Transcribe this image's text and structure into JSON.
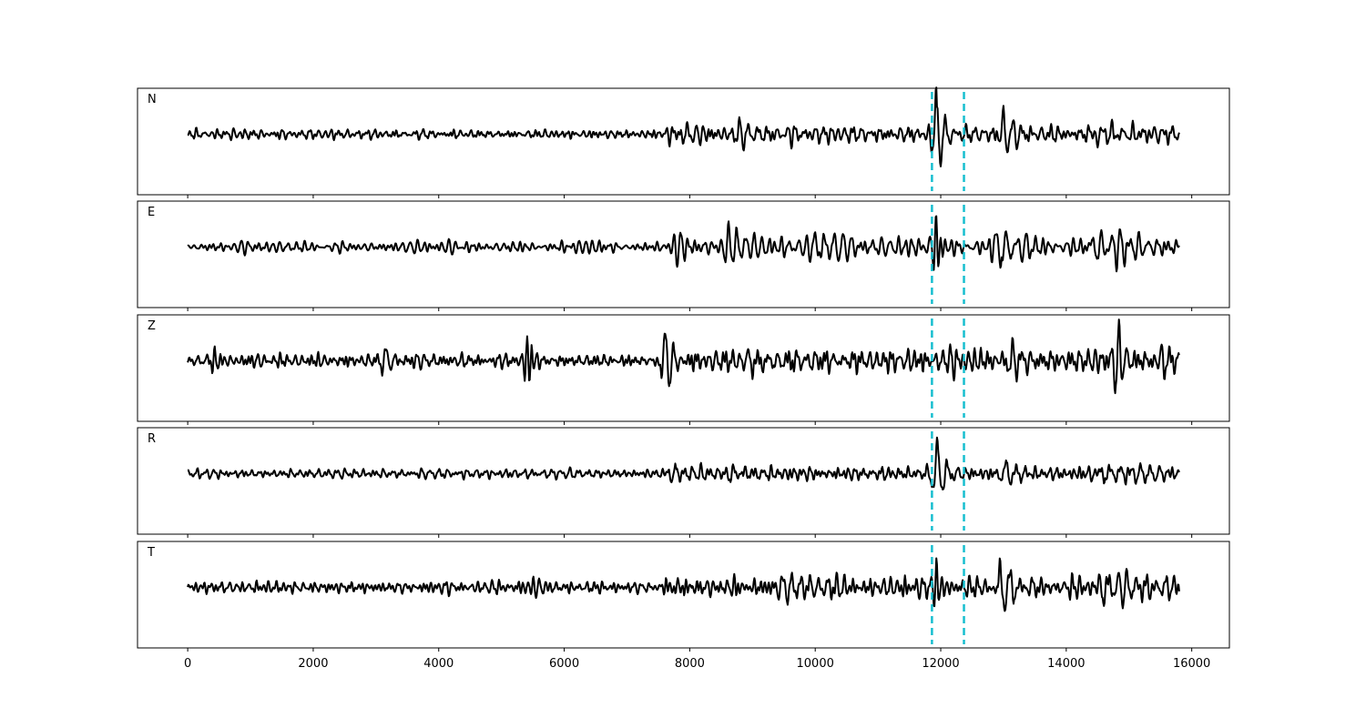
{
  "chart_data": {
    "type": "line",
    "xlim": [
      -800,
      16600
    ],
    "x_ticks": [
      0,
      2000,
      4000,
      6000,
      8000,
      10000,
      12000,
      14000,
      16000
    ],
    "x_tick_labels": [
      "0",
      "2000",
      "4000",
      "6000",
      "8000",
      "10000",
      "12000",
      "14000",
      "16000"
    ],
    "xlabel": "",
    "ylabel": "",
    "grid": false,
    "sample_range": [
      0,
      15800
    ],
    "pick_lines": {
      "color": "#17becf",
      "style": "dashed",
      "x": [
        11860,
        12370
      ]
    },
    "panels": [
      {
        "label": "N",
        "noise_amp": 0.1,
        "events": [
          {
            "x": 7700,
            "amp": 0.34,
            "decay": 120,
            "period": 90
          },
          {
            "x": 7950,
            "amp": 0.28,
            "decay": 200,
            "period": 140
          },
          {
            "x": 8800,
            "amp": 0.2,
            "decay": 600,
            "period": 150
          },
          {
            "x": 11960,
            "amp": 0.9,
            "decay": 120,
            "period": 150
          },
          {
            "x": 13050,
            "amp": 0.55,
            "decay": 150,
            "period": 150
          },
          {
            "x": 14500,
            "amp": 0.25,
            "decay": 900,
            "period": 160
          }
        ]
      },
      {
        "label": "E",
        "noise_amp": 0.12,
        "events": [
          {
            "x": 7820,
            "amp": 0.45,
            "decay": 140,
            "period": 120
          },
          {
            "x": 8600,
            "amp": 0.4,
            "decay": 800,
            "period": 140
          },
          {
            "x": 10000,
            "amp": 0.3,
            "decay": 800,
            "period": 150
          },
          {
            "x": 11940,
            "amp": 0.8,
            "decay": 90,
            "period": 80
          },
          {
            "x": 12950,
            "amp": 0.45,
            "decay": 500,
            "period": 160
          },
          {
            "x": 14500,
            "amp": 0.4,
            "decay": 900,
            "period": 150
          }
        ]
      },
      {
        "label": "Z",
        "noise_amp": 0.14,
        "events": [
          {
            "x": 420,
            "amp": 0.38,
            "decay": 60,
            "period": 80
          },
          {
            "x": 3150,
            "amp": 0.38,
            "decay": 150,
            "period": 150
          },
          {
            "x": 5410,
            "amp": 0.65,
            "decay": 110,
            "period": 80
          },
          {
            "x": 7640,
            "amp": 0.72,
            "decay": 130,
            "period": 150
          },
          {
            "x": 9000,
            "amp": 0.35,
            "decay": 900,
            "period": 150
          },
          {
            "x": 12200,
            "amp": 0.35,
            "decay": 400,
            "period": 100
          },
          {
            "x": 13100,
            "amp": 0.4,
            "decay": 600,
            "period": 150
          },
          {
            "x": 14830,
            "amp": 0.8,
            "decay": 110,
            "period": 120
          },
          {
            "x": 15500,
            "amp": 0.3,
            "decay": 400,
            "period": 150
          }
        ]
      },
      {
        "label": "R",
        "noise_amp": 0.09,
        "events": [
          {
            "x": 7750,
            "amp": 0.3,
            "decay": 180,
            "period": 130
          },
          {
            "x": 8700,
            "amp": 0.18,
            "decay": 700,
            "period": 150
          },
          {
            "x": 11960,
            "amp": 0.9,
            "decay": 130,
            "period": 160
          },
          {
            "x": 13080,
            "amp": 0.5,
            "decay": 220,
            "period": 150
          },
          {
            "x": 14600,
            "amp": 0.26,
            "decay": 900,
            "period": 160
          }
        ]
      },
      {
        "label": "T",
        "noise_amp": 0.13,
        "events": [
          {
            "x": 5400,
            "amp": 0.3,
            "decay": 200,
            "period": 90
          },
          {
            "x": 7800,
            "amp": 0.35,
            "decay": 300,
            "period": 110
          },
          {
            "x": 9500,
            "amp": 0.3,
            "decay": 900,
            "period": 140
          },
          {
            "x": 11950,
            "amp": 0.75,
            "decay": 90,
            "period": 80
          },
          {
            "x": 13000,
            "amp": 0.6,
            "decay": 250,
            "period": 170
          },
          {
            "x": 14600,
            "amp": 0.4,
            "decay": 900,
            "period": 150
          }
        ]
      }
    ]
  }
}
